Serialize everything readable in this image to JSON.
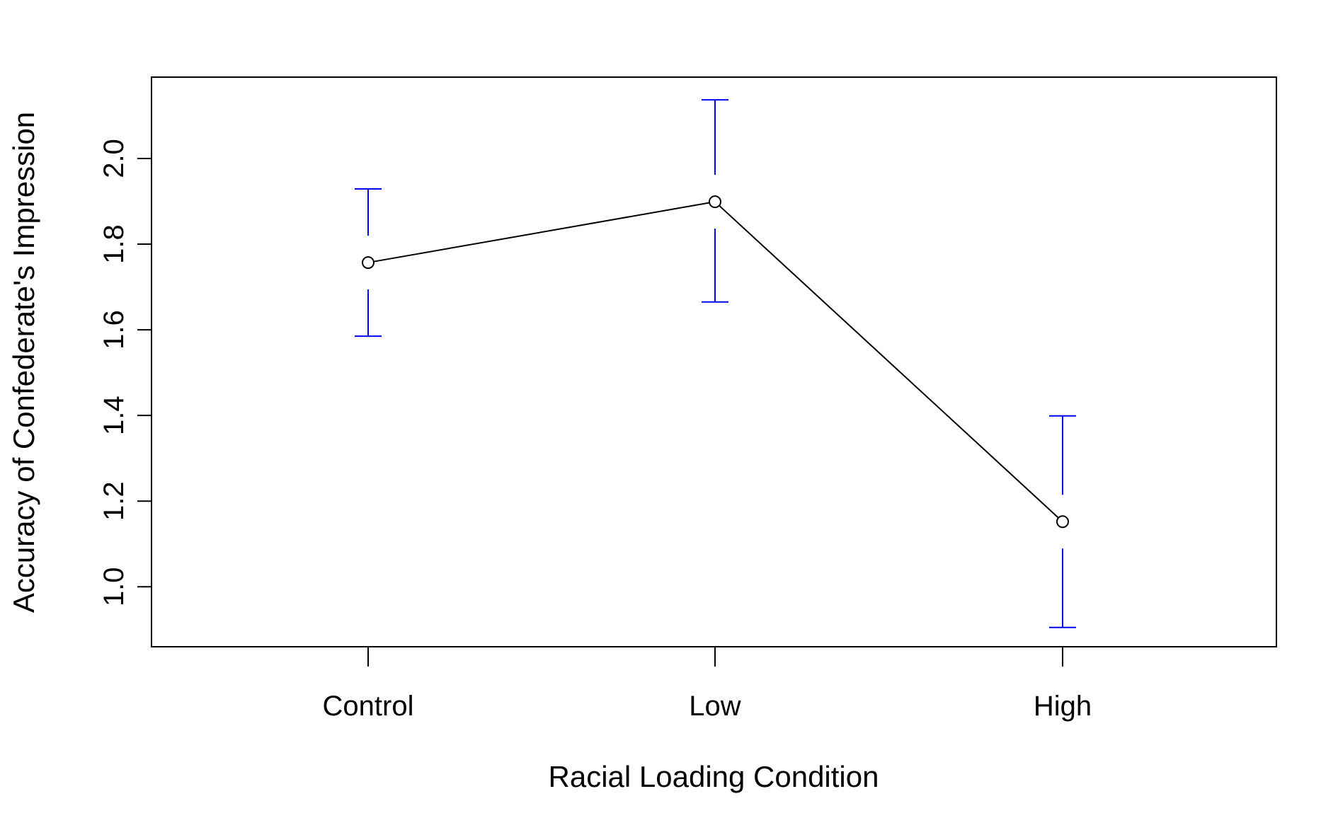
{
  "chart_data": {
    "type": "line",
    "title": "",
    "xlabel": "Racial Loading Condition",
    "ylabel": "Accuracy of Confederate's Impression",
    "categories": [
      "Control",
      "Low",
      "High"
    ],
    "series": [
      {
        "values": [
          1.757,
          1.899,
          1.152
        ],
        "error_lower": [
          1.585,
          1.665,
          0.905
        ],
        "error_upper": [
          1.929,
          2.137,
          1.399
        ]
      }
    ],
    "ylim": [
      0.86,
      2.19
    ],
    "yticks": [
      1.0,
      1.2,
      1.4,
      1.6,
      1.8,
      2.0
    ],
    "ytick_labels": [
      "1.0",
      "1.2",
      "1.4",
      "1.6",
      "1.8",
      "2.0"
    ],
    "grid": false,
    "legend": "none",
    "colors": {
      "line": "#000000",
      "points": "#000000",
      "error_bars": "#0000ff",
      "axes": "#000000"
    },
    "marker": "open-circle"
  }
}
